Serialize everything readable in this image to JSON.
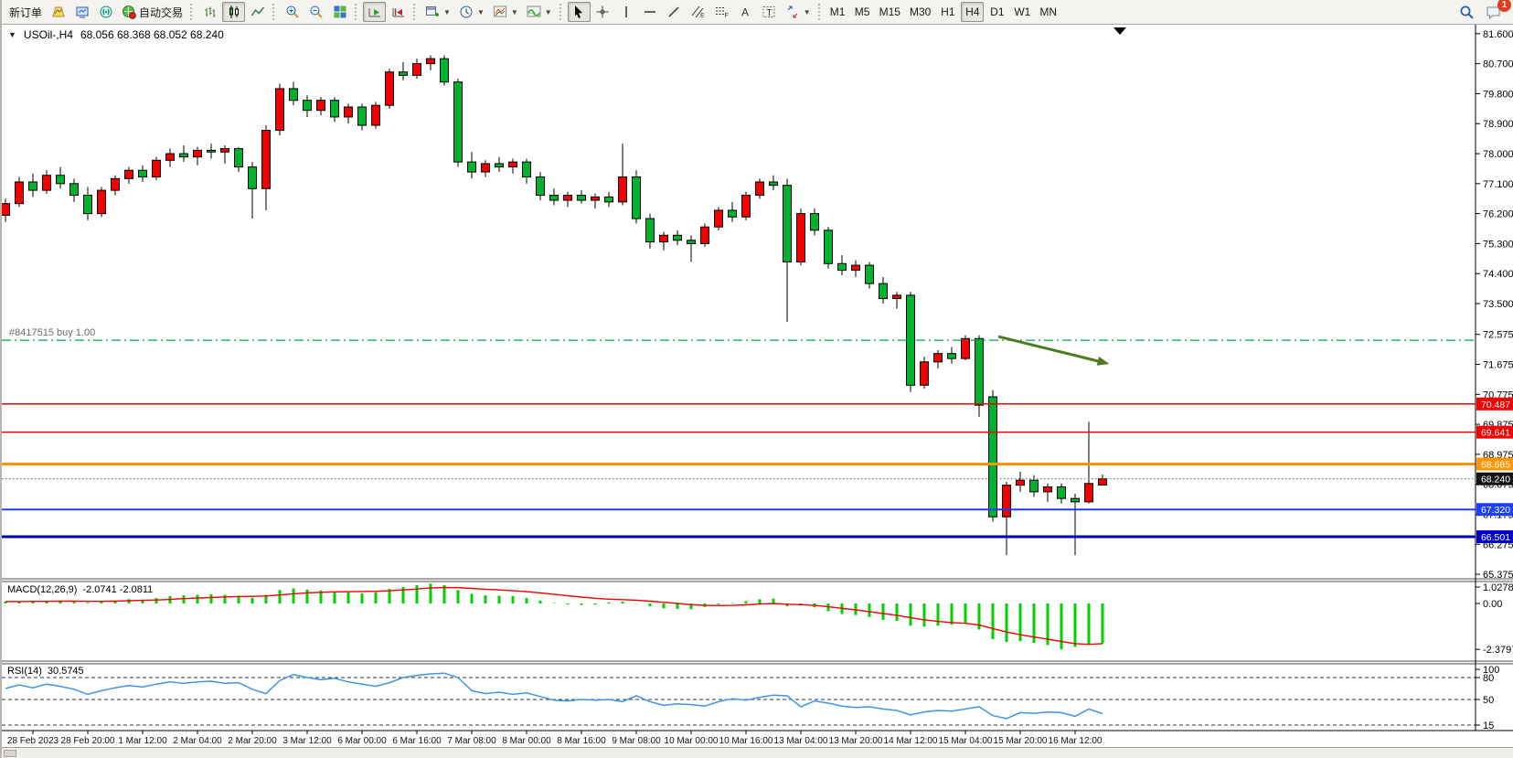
{
  "toolbar": {
    "new_order": "新订单",
    "auto_trading": "自动交易",
    "timeframes": [
      "M1",
      "M5",
      "M15",
      "M30",
      "H1",
      "H4",
      "D1",
      "W1",
      "MN"
    ],
    "active_timeframe": "H4",
    "notification_count": "1"
  },
  "chart": {
    "title_symbol": "USOil-,H4",
    "title_ohlc": "68.056 68.368 68.052 68.240"
  },
  "chart_data": {
    "type": "candlestick",
    "symbol": "USOil-",
    "timeframe": "H4",
    "current_bar": {
      "open": 68.056,
      "high": 68.368,
      "low": 68.052,
      "close": 68.24
    },
    "price_axis": {
      "ticks": [
        "81.600",
        "80.700",
        "79.800",
        "78.900",
        "78.000",
        "77.100",
        "76.200",
        "75.300",
        "74.400",
        "73.500",
        "72.575",
        "71.675",
        "70.775",
        "69.875",
        "68.975",
        "68.075",
        "67.175",
        "66.275",
        "65.375"
      ],
      "ylim": [
        65.24,
        81.87
      ]
    },
    "x_axis_dates": [
      "28 Feb 2023",
      "28 Feb 20:00",
      "1 Mar 12:00",
      "2 Mar 04:00",
      "2 Mar 20:00",
      "3 Mar 12:00",
      "6 Mar 00:00",
      "6 Mar 16:00",
      "7 Mar 08:00",
      "8 Mar 00:00",
      "8 Mar 16:00",
      "9 Mar 08:00",
      "10 Mar 00:00",
      "10 Mar 16:00",
      "13 Mar 04:00",
      "13 Mar 20:00",
      "14 Mar 12:00",
      "15 Mar 04:00",
      "15 Mar 20:00",
      "16 Mar 12:00"
    ],
    "candles": [
      [
        76.15,
        76.65,
        75.95,
        76.5
      ],
      [
        76.5,
        77.3,
        76.4,
        77.15
      ],
      [
        77.15,
        77.4,
        76.7,
        76.9
      ],
      [
        76.9,
        77.5,
        76.8,
        77.35
      ],
      [
        77.35,
        77.6,
        76.95,
        77.1
      ],
      [
        77.1,
        77.25,
        76.55,
        76.75
      ],
      [
        76.75,
        77.0,
        76.0,
        76.2
      ],
      [
        76.2,
        77.0,
        76.1,
        76.9
      ],
      [
        76.9,
        77.35,
        76.75,
        77.25
      ],
      [
        77.25,
        77.6,
        77.1,
        77.5
      ],
      [
        77.5,
        77.65,
        77.15,
        77.3
      ],
      [
        77.3,
        77.9,
        77.2,
        77.8
      ],
      [
        77.8,
        78.15,
        77.6,
        78.0
      ],
      [
        78.0,
        78.25,
        77.75,
        77.9
      ],
      [
        77.9,
        78.2,
        77.65,
        78.1
      ],
      [
        78.1,
        78.3,
        77.85,
        78.05
      ],
      [
        78.05,
        78.25,
        77.7,
        78.15
      ],
      [
        78.15,
        78.2,
        77.45,
        77.6
      ],
      [
        77.6,
        77.75,
        76.05,
        76.95
      ],
      [
        76.95,
        78.85,
        76.3,
        78.7
      ],
      [
        78.7,
        80.1,
        78.55,
        79.95
      ],
      [
        79.95,
        80.15,
        79.45,
        79.6
      ],
      [
        79.6,
        79.75,
        79.1,
        79.3
      ],
      [
        79.3,
        79.7,
        79.15,
        79.6
      ],
      [
        79.6,
        79.7,
        78.95,
        79.1
      ],
      [
        79.1,
        79.5,
        78.9,
        79.4
      ],
      [
        79.4,
        79.5,
        78.7,
        78.85
      ],
      [
        78.85,
        79.55,
        78.75,
        79.45
      ],
      [
        79.45,
        80.55,
        79.35,
        80.45
      ],
      [
        80.45,
        80.75,
        80.2,
        80.35
      ],
      [
        80.35,
        80.85,
        80.25,
        80.7
      ],
      [
        80.7,
        80.95,
        80.5,
        80.85
      ],
      [
        80.85,
        80.95,
        80.05,
        80.15
      ],
      [
        80.15,
        80.25,
        77.6,
        77.75
      ],
      [
        77.75,
        78.05,
        77.25,
        77.45
      ],
      [
        77.45,
        77.8,
        77.3,
        77.7
      ],
      [
        77.7,
        77.9,
        77.45,
        77.6
      ],
      [
        77.6,
        77.85,
        77.4,
        77.75
      ],
      [
        77.75,
        77.85,
        77.1,
        77.3
      ],
      [
        77.3,
        77.45,
        76.6,
        76.75
      ],
      [
        76.75,
        76.95,
        76.45,
        76.6
      ],
      [
        76.6,
        76.85,
        76.4,
        76.75
      ],
      [
        76.75,
        76.9,
        76.5,
        76.6
      ],
      [
        76.6,
        76.8,
        76.35,
        76.7
      ],
      [
        76.7,
        76.85,
        76.4,
        76.55
      ],
      [
        76.55,
        78.3,
        76.45,
        77.3
      ],
      [
        77.3,
        77.5,
        75.9,
        76.05
      ],
      [
        76.05,
        76.2,
        75.15,
        75.35
      ],
      [
        75.35,
        75.65,
        75.1,
        75.55
      ],
      [
        75.55,
        75.7,
        75.25,
        75.4
      ],
      [
        75.4,
        75.55,
        74.75,
        75.3
      ],
      [
        75.3,
        75.9,
        75.2,
        75.8
      ],
      [
        75.8,
        76.4,
        75.7,
        76.3
      ],
      [
        76.3,
        76.55,
        75.95,
        76.1
      ],
      [
        76.1,
        76.85,
        76.0,
        76.75
      ],
      [
        76.75,
        77.25,
        76.65,
        77.15
      ],
      [
        77.15,
        77.35,
        76.9,
        77.05
      ],
      [
        77.05,
        77.25,
        72.95,
        74.75
      ],
      [
        74.75,
        76.35,
        74.65,
        76.2
      ],
      [
        76.2,
        76.35,
        75.55,
        75.7
      ],
      [
        75.7,
        75.8,
        74.55,
        74.7
      ],
      [
        74.7,
        74.95,
        74.35,
        74.5
      ],
      [
        74.5,
        74.8,
        74.3,
        74.65
      ],
      [
        74.65,
        74.75,
        73.95,
        74.1
      ],
      [
        74.1,
        74.3,
        73.5,
        73.65
      ],
      [
        73.65,
        73.85,
        73.35,
        73.75
      ],
      [
        73.75,
        73.85,
        70.85,
        71.05
      ],
      [
        71.05,
        71.9,
        70.95,
        71.75
      ],
      [
        71.75,
        72.1,
        71.55,
        72.0
      ],
      [
        72.0,
        72.2,
        71.7,
        71.85
      ],
      [
        71.85,
        72.55,
        71.8,
        72.45
      ],
      [
        72.45,
        72.55,
        70.1,
        70.45
      ],
      [
        70.7,
        70.9,
        66.95,
        67.1
      ],
      [
        67.1,
        68.15,
        65.95,
        68.05
      ],
      [
        68.05,
        68.45,
        67.85,
        68.2
      ],
      [
        68.2,
        68.35,
        67.7,
        67.85
      ],
      [
        67.85,
        68.1,
        67.55,
        68.0
      ],
      [
        68.0,
        68.1,
        67.5,
        67.65
      ],
      [
        67.65,
        67.8,
        65.95,
        67.55
      ],
      [
        67.55,
        69.95,
        67.5,
        68.1
      ],
      [
        68.056,
        68.368,
        68.052,
        68.24
      ]
    ],
    "horizontal_lines": [
      {
        "price": 70.487,
        "label": "70.487",
        "color": "#f40000",
        "badge_bg": "#f40000",
        "width": 1.5,
        "style": "solid"
      },
      {
        "price": 69.641,
        "label": "69.641",
        "color": "#f40000",
        "badge_bg": "#f40000",
        "width": 1.5,
        "style": "solid"
      },
      {
        "price": 68.685,
        "label": "68.685",
        "color": "#ff9500",
        "badge_bg": "#ff9500",
        "width": 3,
        "style": "solid"
      },
      {
        "price": 68.24,
        "label": "68.240",
        "color": "#666666",
        "badge_bg": "#141414",
        "width": 1,
        "style": "dotted"
      },
      {
        "price": 67.32,
        "label": "67.320",
        "color": "#1f3fff",
        "badge_bg": "#1f3fff",
        "width": 2,
        "style": "solid"
      },
      {
        "price": 66.501,
        "label": "66.501",
        "color": "#0000b8",
        "badge_bg": "#0000c8",
        "width": 3,
        "style": "solid"
      }
    ],
    "order_line": {
      "price": 72.4,
      "label": "#8417515 buy 1.00",
      "color": "#00a651",
      "style": "dashdot"
    },
    "trend_arrow": {
      "from_bar": 72.4,
      "from_price": 72.51,
      "to_bar": 80.5,
      "to_price": 71.69,
      "color": "#4e7b1f"
    },
    "macd": {
      "label": "MACD(12,26,9)",
      "values_text": "-2.0741 -2.0811",
      "macd_value": -2.0741,
      "signal_value": -2.0811,
      "axis_ticks": [
        "1.0278",
        "0.00",
        "-2.3797"
      ],
      "ylim": [
        -2.986,
        1.137
      ],
      "colors": {
        "histogram": "#00d200",
        "signal": "#f40000"
      },
      "histogram": [
        0.1,
        0.12,
        0.1,
        0.15,
        0.12,
        0.08,
        0.04,
        0.08,
        0.15,
        0.22,
        0.2,
        0.28,
        0.38,
        0.42,
        0.45,
        0.48,
        0.45,
        0.4,
        0.3,
        0.45,
        0.7,
        0.78,
        0.72,
        0.68,
        0.6,
        0.58,
        0.52,
        0.58,
        0.75,
        0.85,
        0.95,
        1.03,
        0.95,
        0.7,
        0.5,
        0.42,
        0.4,
        0.38,
        0.28,
        0.15,
        0.02,
        -0.05,
        -0.08,
        -0.06,
        0.06,
        0.1,
        -0.02,
        -0.15,
        -0.25,
        -0.28,
        -0.3,
        -0.18,
        -0.05,
        0.02,
        0.12,
        0.22,
        0.25,
        -0.15,
        -0.1,
        -0.2,
        -0.4,
        -0.55,
        -0.6,
        -0.7,
        -0.85,
        -0.9,
        -1.15,
        -1.2,
        -1.15,
        -1.1,
        -1.0,
        -1.35,
        -1.85,
        -2.0,
        -1.95,
        -2.05,
        -2.15,
        -2.38,
        -2.25,
        -2.15,
        -2.0741
      ],
      "signal": [
        0.1,
        0.1,
        0.11,
        0.11,
        0.12,
        0.12,
        0.11,
        0.11,
        0.12,
        0.14,
        0.16,
        0.18,
        0.21,
        0.25,
        0.28,
        0.31,
        0.34,
        0.36,
        0.37,
        0.39,
        0.44,
        0.5,
        0.55,
        0.58,
        0.6,
        0.61,
        0.62,
        0.63,
        0.66,
        0.7,
        0.75,
        0.8,
        0.83,
        0.82,
        0.78,
        0.74,
        0.7,
        0.66,
        0.61,
        0.55,
        0.48,
        0.4,
        0.33,
        0.27,
        0.22,
        0.2,
        0.17,
        0.12,
        0.06,
        0.0,
        -0.06,
        -0.1,
        -0.11,
        -0.1,
        -0.07,
        -0.03,
        0.0,
        -0.04,
        -0.06,
        -0.1,
        -0.17,
        -0.25,
        -0.33,
        -0.42,
        -0.52,
        -0.61,
        -0.74,
        -0.85,
        -0.93,
        -0.99,
        -1.03,
        -1.12,
        -1.3,
        -1.48,
        -1.62,
        -1.74,
        -1.85,
        -1.97,
        -2.08,
        -2.12,
        -2.0811
      ]
    },
    "rsi": {
      "label": "RSI(14)",
      "value_text": "30.5745",
      "value": 30.5745,
      "levels": [
        80,
        50,
        15
      ],
      "axis_ticks": [
        "100",
        "80",
        "50",
        "15"
      ],
      "ylim": [
        7.5,
        98.75
      ],
      "color": "#3d96e8",
      "values": [
        65,
        70,
        66,
        71,
        68,
        64,
        57,
        62,
        66,
        69,
        67,
        71,
        74,
        72,
        74,
        75,
        72,
        73,
        64,
        58,
        76,
        84,
        80,
        77,
        79,
        74,
        71,
        68,
        73,
        80,
        83,
        85,
        86,
        80,
        62,
        58,
        60,
        57,
        59,
        54,
        49,
        48,
        50,
        49,
        50,
        47,
        55,
        47,
        42,
        44,
        43,
        41,
        47,
        51,
        49,
        53,
        56,
        55,
        40,
        48,
        45,
        41,
        39,
        40,
        37,
        35,
        29,
        33,
        35,
        34,
        37,
        40,
        28,
        24,
        32,
        31,
        33,
        32,
        27,
        37,
        30.57
      ]
    },
    "colors": {
      "bull": "#f40000",
      "bear": "#00b22d",
      "wick": "#000000",
      "background": "#ffffff"
    }
  }
}
